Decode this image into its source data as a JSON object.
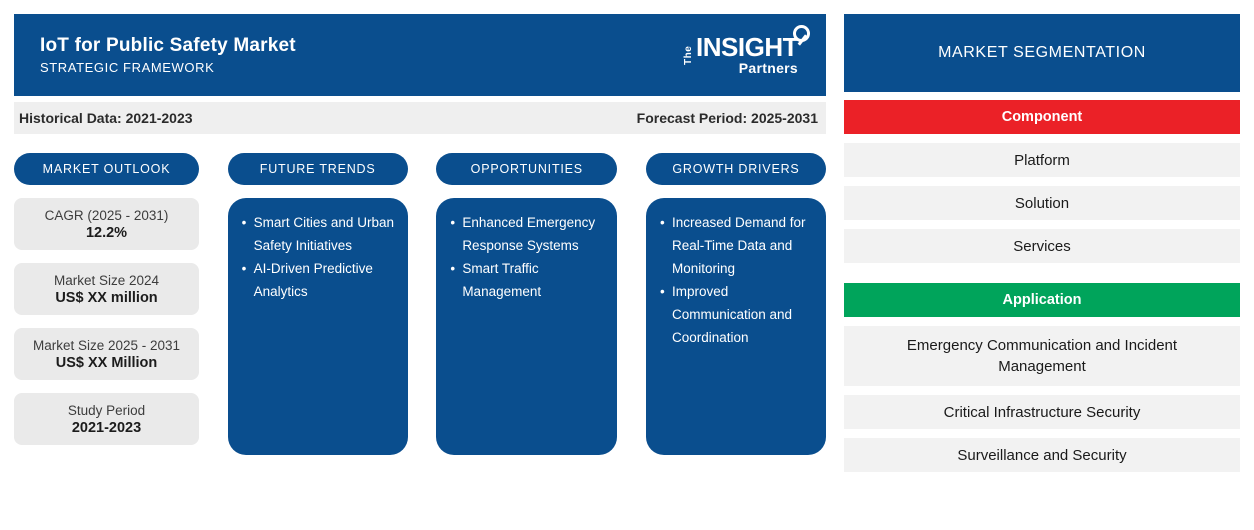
{
  "header": {
    "title": "IoT for Public Safety Market",
    "subtitle": "STRATEGIC FRAMEWORK",
    "logo": {
      "the": "The",
      "insight": "INSIGHT",
      "partners": "Partners"
    }
  },
  "period_bar": {
    "historical": "Historical Data: 2021-2023",
    "forecast": "Forecast Period: 2025-2031"
  },
  "market_outlook": {
    "label": "MARKET OUTLOOK",
    "stats": [
      {
        "label": "CAGR (2025 - 2031)",
        "value": "12.2%"
      },
      {
        "label": "Market Size 2024",
        "value": "US$ XX million"
      },
      {
        "label": "Market Size 2025 - 2031",
        "value": "US$ XX Million"
      },
      {
        "label": "Study Period",
        "value": "2021-2023"
      }
    ]
  },
  "columns": [
    {
      "label": "FUTURE TRENDS",
      "items": [
        "Smart Cities and Urban Safety Initiatives",
        "AI-Driven Predictive Analytics"
      ]
    },
    {
      "label": "OPPORTUNITIES",
      "items": [
        "Enhanced Emergency Response Systems",
        "Smart Traffic Management"
      ]
    },
    {
      "label": "GROWTH DRIVERS",
      "items": [
        "Increased Demand for Real-Time Data and Monitoring",
        "Improved Communication and Coordination"
      ]
    }
  ],
  "segmentation": {
    "title": "MARKET SEGMENTATION",
    "groups": [
      {
        "label": "Component",
        "color": "#EB2127",
        "items": [
          "Platform",
          "Solution",
          "Services"
        ]
      },
      {
        "label": "Application",
        "color": "#00A45B",
        "items": [
          "Emergency Communication and Incident Management",
          "Critical Infrastructure Security",
          "Surveillance and Security"
        ]
      }
    ]
  },
  "colors": {
    "blue": "#0A4E8E",
    "red": "#EB2127",
    "green": "#00A45B",
    "gray_bar": "#EFEFEF"
  }
}
